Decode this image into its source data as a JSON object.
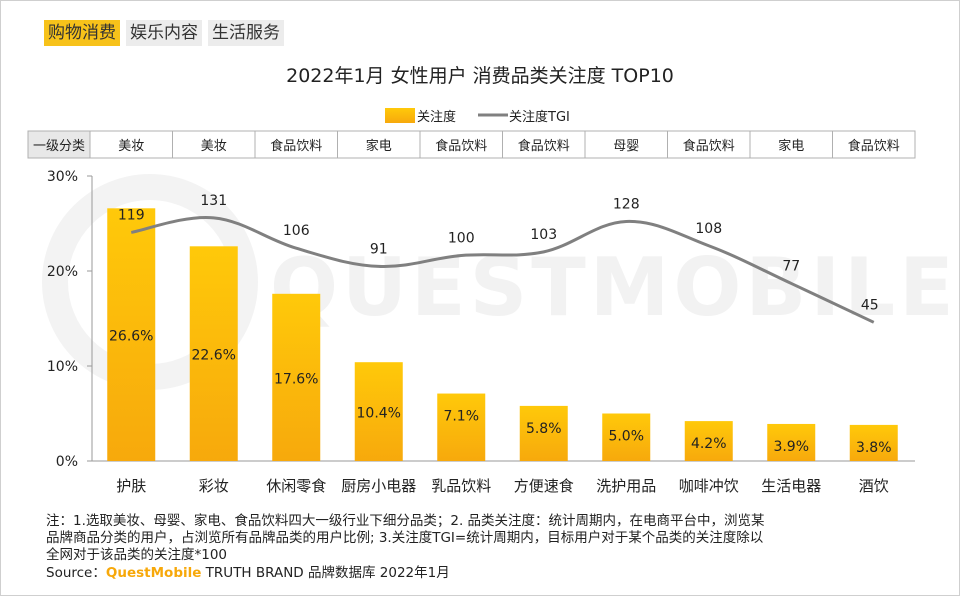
{
  "tabs": [
    {
      "label": "购物消费",
      "active": true
    },
    {
      "label": "娱乐内容",
      "active": false
    },
    {
      "label": "生活服务",
      "active": false
    }
  ],
  "watermark": "QUESTMOBILE",
  "colors": {
    "bar_top": "#ffc90a",
    "bar_bottom": "#f7a90c",
    "line": "#808080",
    "axis": "#9a9a9a",
    "text": "#222222",
    "brand": "#f7a80a",
    "tab_active": "#f7c21a"
  },
  "chart_data": {
    "type": "bar",
    "title": "2022年1月 女性用户 消费品类关注度 TOP10",
    "legend": {
      "bar": "关注度",
      "line": "关注度TGI",
      "position": "top-center"
    },
    "header_label": "一级分类",
    "primary_categories": [
      "美妆",
      "美妆",
      "食品饮料",
      "家电",
      "食品饮料",
      "食品饮料",
      "母婴",
      "食品饮料",
      "家电",
      "食品饮料"
    ],
    "categories": [
      "护肤",
      "彩妆",
      "休闲零食",
      "厨房小电器",
      "乳品饮料",
      "方便速食",
      "洗护用品",
      "咖啡冲饮",
      "生活电器",
      "酒饮"
    ],
    "values": [
      26.6,
      22.6,
      17.6,
      10.4,
      7.1,
      5.8,
      5.0,
      4.2,
      3.9,
      3.8
    ],
    "value_labels": [
      "26.6%",
      "22.6%",
      "17.6%",
      "10.4%",
      "7.1%",
      "5.8%",
      "5.0%",
      "4.2%",
      "3.9%",
      "3.8%"
    ],
    "tgi": [
      119,
      131,
      106,
      91,
      100,
      103,
      128,
      108,
      77,
      45
    ],
    "ylim": [
      0,
      30
    ],
    "yticks": [
      0,
      10,
      20,
      30
    ],
    "ytick_labels": [
      "0%",
      "10%",
      "20%",
      "30%"
    ],
    "xlabel": "",
    "ylabel": ""
  },
  "notes": {
    "line1": "注：1.选取美妆、母婴、家电、食品饮料四大一级行业下细分品类；2. 品类关注度：统计周期内，在电商平台中，浏览某",
    "line2": "品牌商品分类的用户，占浏览所有品牌品类的用户比例; 3.关注度TGI=统计周期内，目标用户对于某个品类的关注度除以",
    "line3": "全网对于该品类的关注度*100",
    "source_prefix": "Source：",
    "source_brand": "QuestMobile",
    "source_suffix": " TRUTH BRAND 品牌数据库 2022年1月"
  }
}
